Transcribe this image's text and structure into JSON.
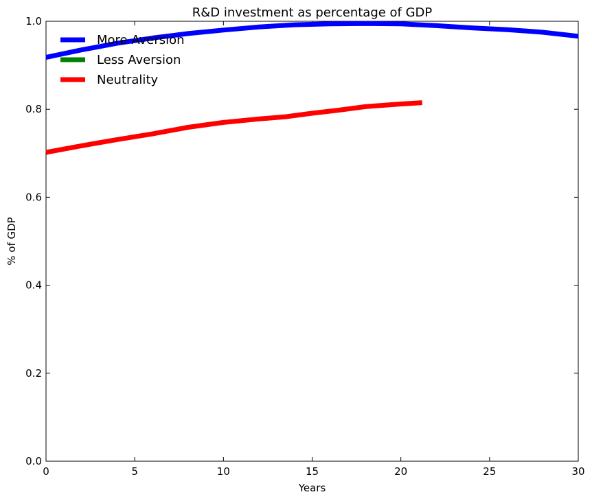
{
  "chart_data": {
    "type": "line",
    "title": "R&D investment as percentage of  GDP",
    "xlabel": "Years",
    "ylabel": "% of GDP",
    "xlim": [
      0,
      30
    ],
    "ylim": [
      0.0,
      1.0
    ],
    "x_ticks": [
      "0",
      "5",
      "10",
      "15",
      "20",
      "25",
      "30"
    ],
    "y_ticks": [
      "0.0",
      "0.2",
      "0.4",
      "0.6",
      "0.8",
      "1.0"
    ],
    "grid": false,
    "legend_position": "top-left",
    "series": [
      {
        "name": "More Aversion",
        "color": "#0000ff",
        "x": [
          0,
          2,
          4,
          6,
          8,
          10,
          12,
          14,
          16,
          18,
          20,
          22,
          24,
          26,
          28,
          30
        ],
        "y": [
          0.918,
          0.935,
          0.95,
          0.962,
          0.972,
          0.98,
          0.987,
          0.992,
          0.994,
          0.995,
          0.994,
          0.99,
          0.985,
          0.981,
          0.975,
          0.966
        ]
      },
      {
        "name": "Less Aversion",
        "color": "#008000",
        "x": [],
        "y": []
      },
      {
        "name": "Neutrality",
        "color": "#ff0000",
        "x": [
          0,
          2,
          4,
          6,
          8,
          10,
          12,
          13.5,
          15,
          16.5,
          18,
          20,
          21.2
        ],
        "y": [
          0.702,
          0.717,
          0.731,
          0.744,
          0.759,
          0.77,
          0.778,
          0.783,
          0.791,
          0.798,
          0.806,
          0.812,
          0.815
        ]
      }
    ]
  }
}
